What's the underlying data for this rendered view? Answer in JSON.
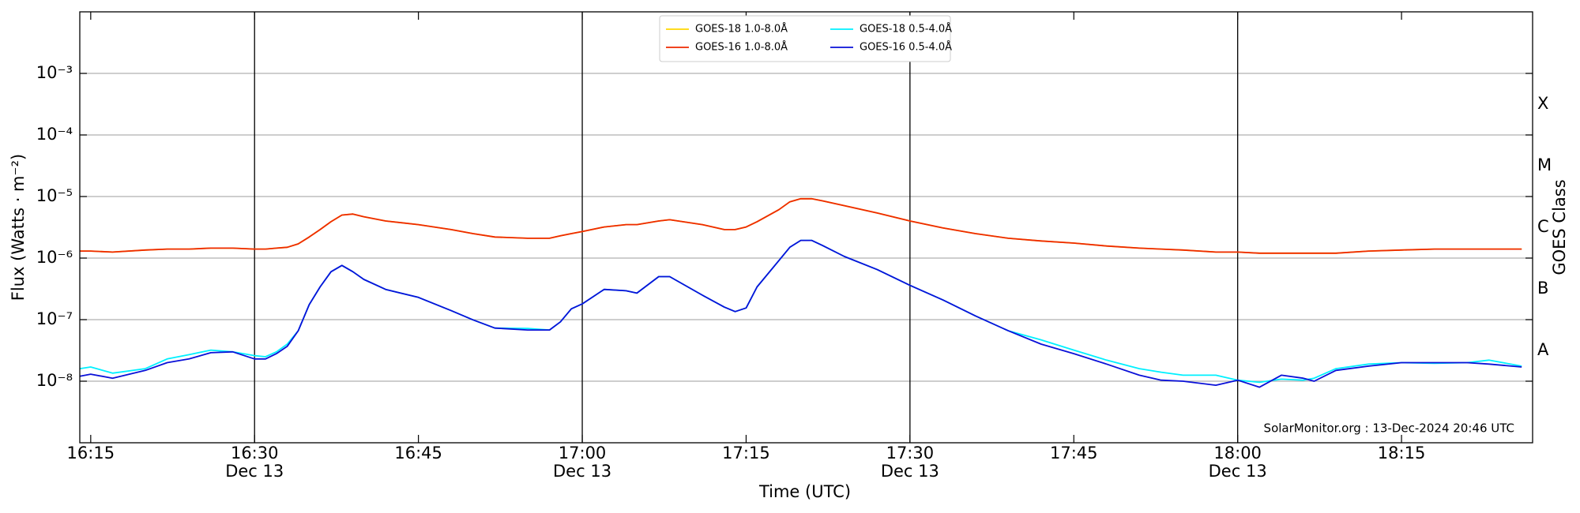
{
  "chart_data": {
    "type": "line",
    "xlabel": "Time (UTC)",
    "ylabel": "Flux (Watts · m⁻²)",
    "y2label": "GOES Class",
    "annotation": "SolarMonitor.org : 13-Dec-2024 20:46 UTC",
    "yscale": "log",
    "ylim": [
      1e-09,
      0.01
    ],
    "yticks": [
      {
        "value": 1e-08,
        "label": "10⁻⁸"
      },
      {
        "value": 1e-07,
        "label": "10⁻⁷"
      },
      {
        "value": 1e-06,
        "label": "10⁻⁶"
      },
      {
        "value": 1e-05,
        "label": "10⁻⁵"
      },
      {
        "value": 0.0001,
        "label": "10⁻⁴"
      },
      {
        "value": 0.001,
        "label": "10⁻³"
      }
    ],
    "y2lim": [
      1e-09,
      0.01
    ],
    "y2ticks": [
      {
        "value": 3.162e-08,
        "label": "A"
      },
      {
        "value": 3.162e-07,
        "label": "B"
      },
      {
        "value": 3.162e-06,
        "label": "C"
      },
      {
        "value": 3.162e-05,
        "label": "M"
      },
      {
        "value": 0.0003162,
        "label": "X"
      }
    ],
    "xlim": [
      "16:14",
      "18:27"
    ],
    "xticks": [
      "16:15",
      {
        "value": "16:30",
        "label": "16:30",
        "date": "Dec 13"
      },
      "16:45",
      {
        "value": "17:00",
        "label": "17:00",
        "date": "Dec 13"
      },
      "17:15",
      {
        "value": "17:30",
        "label": "17:30",
        "date": "Dec 13"
      },
      "17:45",
      {
        "value": "18:00",
        "label": "18:00",
        "date": "Dec 13"
      },
      "18:15"
    ],
    "grid": true,
    "legend": "upper center",
    "x": [
      "16:14",
      "16:15",
      "16:17",
      "16:20",
      "16:22",
      "16:24",
      "16:26",
      "16:28",
      "16:30",
      "16:31",
      "16:32",
      "16:33",
      "16:34",
      "16:35",
      "16:36",
      "16:37",
      "16:38",
      "16:39",
      "16:40",
      "16:42",
      "16:45",
      "16:48",
      "16:50",
      "16:52",
      "16:55",
      "16:57",
      "16:58",
      "16:59",
      "17:00",
      "17:02",
      "17:04",
      "17:05",
      "17:07",
      "17:08",
      "17:11",
      "17:13",
      "17:14",
      "17:15",
      "17:16",
      "17:18",
      "17:19",
      "17:20",
      "17:21",
      "17:22",
      "17:24",
      "17:27",
      "17:30",
      "17:33",
      "17:36",
      "17:39",
      "17:42",
      "17:45",
      "17:48",
      "17:51",
      "17:53",
      "17:55",
      "17:58",
      "18:00",
      "18:02",
      "18:04",
      "18:06",
      "18:07",
      "18:09",
      "18:12",
      "18:15",
      "18:18",
      "18:21",
      "18:23",
      "18:26"
    ],
    "series": [
      {
        "name": "GOES-18 1.0-8.0Å",
        "color": "#ffd700",
        "values": [
          1.3e-06,
          1.3e-06,
          1.25e-06,
          1.35e-06,
          1.4e-06,
          1.4e-06,
          1.45e-06,
          1.45e-06,
          1.4e-06,
          1.4e-06,
          1.45e-06,
          1.5e-06,
          1.7e-06,
          2.2e-06,
          2.9e-06,
          3.9e-06,
          5e-06,
          5.2e-06,
          4.7e-06,
          4e-06,
          3.5e-06,
          2.9e-06,
          2.5e-06,
          2.2e-06,
          2.1e-06,
          2.1e-06,
          2.3e-06,
          2.5e-06,
          2.7e-06,
          3.2e-06,
          3.5e-06,
          3.5e-06,
          4e-06,
          4.2e-06,
          3.5e-06,
          2.9e-06,
          2.9e-06,
          3.2e-06,
          3.9e-06,
          6.1e-06,
          8.2e-06,
          9.2e-06,
          9.2e-06,
          8.5e-06,
          7.1e-06,
          5.4e-06,
          4e-06,
          3.1e-06,
          2.5e-06,
          2.1e-06,
          1.9e-06,
          1.75e-06,
          1.57e-06,
          1.45e-06,
          1.4e-06,
          1.35e-06,
          1.25e-06,
          1.25e-06,
          1.2e-06,
          1.2e-06,
          1.2e-06,
          1.2e-06,
          1.2e-06,
          1.3e-06,
          1.35e-06,
          1.4e-06,
          1.4e-06,
          1.4e-06,
          1.4e-06
        ]
      },
      {
        "name": "GOES-16 1.0-8.0Å",
        "color": "#ee2a00",
        "values": [
          1.3e-06,
          1.3e-06,
          1.25e-06,
          1.35e-06,
          1.4e-06,
          1.4e-06,
          1.45e-06,
          1.45e-06,
          1.4e-06,
          1.4e-06,
          1.45e-06,
          1.5e-06,
          1.7e-06,
          2.2e-06,
          2.9e-06,
          3.9e-06,
          5e-06,
          5.2e-06,
          4.7e-06,
          4e-06,
          3.5e-06,
          2.9e-06,
          2.5e-06,
          2.2e-06,
          2.1e-06,
          2.1e-06,
          2.3e-06,
          2.5e-06,
          2.7e-06,
          3.2e-06,
          3.5e-06,
          3.5e-06,
          4e-06,
          4.2e-06,
          3.5e-06,
          2.9e-06,
          2.9e-06,
          3.2e-06,
          3.9e-06,
          6.1e-06,
          8.2e-06,
          9.2e-06,
          9.2e-06,
          8.5e-06,
          7.1e-06,
          5.4e-06,
          4e-06,
          3.1e-06,
          2.5e-06,
          2.1e-06,
          1.9e-06,
          1.75e-06,
          1.57e-06,
          1.45e-06,
          1.4e-06,
          1.35e-06,
          1.25e-06,
          1.25e-06,
          1.2e-06,
          1.2e-06,
          1.2e-06,
          1.2e-06,
          1.2e-06,
          1.3e-06,
          1.35e-06,
          1.4e-06,
          1.4e-06,
          1.4e-06,
          1.4e-06
        ]
      },
      {
        "name": "GOES-18 0.5-4.0Å",
        "color": "#00f0ff",
        "values": [
          1.6e-08,
          1.7e-08,
          1.35e-08,
          1.6e-08,
          2.3e-08,
          2.7e-08,
          3.2e-08,
          3e-08,
          2.6e-08,
          2.5e-08,
          3e-08,
          4e-08,
          6.6e-08,
          1.75e-07,
          3.4e-07,
          6e-07,
          7.6e-07,
          6e-07,
          4.5e-07,
          3.1e-07,
          2.3e-07,
          1.4e-07,
          9.9e-08,
          7.3e-08,
          7.2e-08,
          6.8e-08,
          9.2e-08,
          1.5e-07,
          1.8e-07,
          3.1e-07,
          2.95e-07,
          2.7e-07,
          5e-07,
          5e-07,
          2.5e-07,
          1.6e-07,
          1.35e-07,
          1.55e-07,
          3.4e-07,
          9.1e-07,
          1.5e-06,
          1.94e-06,
          1.94e-06,
          1.6e-06,
          1.06e-06,
          6.5e-07,
          3.6e-07,
          2.1e-07,
          1.15e-07,
          6.6e-08,
          4.7e-08,
          3.2e-08,
          2.2e-08,
          1.6e-08,
          1.4e-08,
          1.25e-08,
          1.25e-08,
          1.04e-08,
          9.6e-09,
          1.08e-08,
          1.04e-08,
          1.12e-08,
          1.6e-08,
          1.9e-08,
          2e-08,
          1.95e-08,
          2e-08,
          2.2e-08,
          1.76e-08
        ]
      },
      {
        "name": "GOES-16 0.5-4.0Å",
        "color": "#0a10d8",
        "values": [
          1.2e-08,
          1.3e-08,
          1.12e-08,
          1.5e-08,
          2e-08,
          2.3e-08,
          2.9e-08,
          3e-08,
          2.3e-08,
          2.3e-08,
          2.8e-08,
          3.7e-08,
          6.6e-08,
          1.75e-07,
          3.4e-07,
          6e-07,
          7.6e-07,
          6e-07,
          4.5e-07,
          3.1e-07,
          2.3e-07,
          1.4e-07,
          9.9e-08,
          7.3e-08,
          6.8e-08,
          6.8e-08,
          9.2e-08,
          1.5e-07,
          1.8e-07,
          3.1e-07,
          2.95e-07,
          2.7e-07,
          5e-07,
          5e-07,
          2.5e-07,
          1.6e-07,
          1.35e-07,
          1.55e-07,
          3.4e-07,
          9.1e-07,
          1.5e-06,
          1.94e-06,
          1.94e-06,
          1.6e-06,
          1.06e-06,
          6.5e-07,
          3.6e-07,
          2.1e-07,
          1.15e-07,
          6.6e-08,
          4e-08,
          2.8e-08,
          1.9e-08,
          1.25e-08,
          1.04e-08,
          1e-08,
          8.6e-09,
          1.04e-08,
          8e-09,
          1.25e-08,
          1.12e-08,
          1e-08,
          1.5e-08,
          1.76e-08,
          2e-08,
          2e-08,
          2e-08,
          1.9e-08,
          1.7e-08
        ]
      }
    ]
  }
}
